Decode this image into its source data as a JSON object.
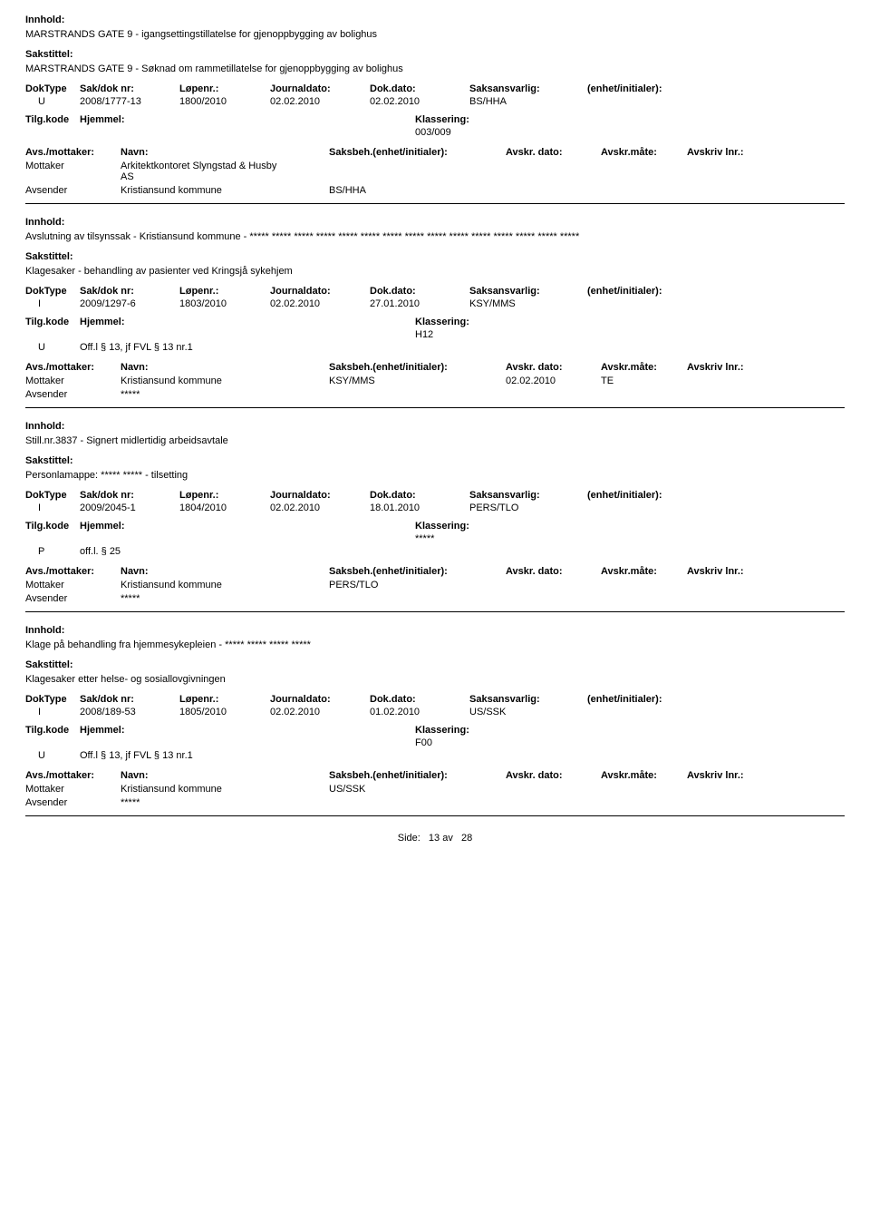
{
  "labels": {
    "innhold": "Innhold:",
    "sakstittel": "Sakstittel:",
    "doktype": "DokType",
    "sakdok": "Sak/dok nr:",
    "lopenr": "Løpenr.:",
    "journaldato": "Journaldato:",
    "dokdato": "Dok.dato:",
    "saksansvarlig": "Saksansvarlig:",
    "enhet": "(enhet/initialer):",
    "tilgkode": "Tilg.kode",
    "hjemmel": "Hjemmel:",
    "klassering": "Klassering:",
    "avsmottaker": "Avs./mottaker:",
    "navn": "Navn:",
    "saksbehenhet": "Saksbeh.(enhet/initialer):",
    "avskrdato": "Avskr. dato:",
    "avskrmate": "Avskr.måte:",
    "avskrivlnr": "Avskriv lnr.:",
    "mottaker": "Mottaker",
    "avsender": "Avsender",
    "side": "Side:",
    "av": "av"
  },
  "footer": {
    "page": "13",
    "total": "28"
  },
  "records": [
    {
      "innhold": "MARSTRANDS GATE 9 -  igangsettingstillatelse for gjenoppbygging av bolighus",
      "sakstittel": "MARSTRANDS GATE 9 - Søknad om rammetillatelse for gjenoppbygging av bolighus",
      "doktype": "U",
      "sakdok": "2008/1777-13",
      "lopenr": "1800/2010",
      "journaldato": "02.02.2010",
      "dokdato": "02.02.2010",
      "saksansvarlig": "BS/HHA",
      "tilgkode": "",
      "hjemmel": "",
      "klassering": "003/009",
      "parties": [
        {
          "role": "Mottaker",
          "navn_line1": "Arkitektkontoret Slyngstad & Husby",
          "navn_line2": "AS",
          "saksbeh": "",
          "avskrdato": "",
          "avskrmate": "",
          "avskrivlnr": ""
        },
        {
          "role": "Avsender",
          "navn_line1": "Kristiansund kommune",
          "navn_line2": "",
          "saksbeh": "BS/HHA",
          "avskrdato": "",
          "avskrmate": "",
          "avskrivlnr": ""
        }
      ]
    },
    {
      "innhold": "Avslutning av tilsynssak - Kristiansund kommune - ***** ***** ***** ***** ***** ***** ***** ***** ***** ***** ***** ***** ***** ***** *****",
      "sakstittel": "Klagesaker - behandling av pasienter ved Kringsjå sykehjem",
      "doktype": "I",
      "sakdok": "2009/1297-6",
      "lopenr": "1803/2010",
      "journaldato": "02.02.2010",
      "dokdato": "27.01.2010",
      "saksansvarlig": "KSY/MMS",
      "tilgkode": "U",
      "hjemmel": "Off.l § 13, jf FVL § 13 nr.1",
      "klassering": "H12",
      "parties": [
        {
          "role": "Mottaker",
          "navn_line1": "Kristiansund kommune",
          "navn_line2": "",
          "saksbeh": "KSY/MMS",
          "avskrdato": "02.02.2010",
          "avskrmate": "TE",
          "avskrivlnr": ""
        },
        {
          "role": "Avsender",
          "navn_line1": "*****",
          "navn_line2": "",
          "saksbeh": "",
          "avskrdato": "",
          "avskrmate": "",
          "avskrivlnr": ""
        }
      ]
    },
    {
      "innhold": "Still.nr.3837 - Signert midlertidig arbeidsavtale",
      "sakstittel": "Personlamappe: ***** ***** - tilsetting",
      "doktype": "I",
      "sakdok": "2009/2045-1",
      "lopenr": "1804/2010",
      "journaldato": "02.02.2010",
      "dokdato": "18.01.2010",
      "saksansvarlig": "PERS/TLO",
      "tilgkode": "P",
      "hjemmel": "off.l. § 25",
      "klassering": "*****",
      "parties": [
        {
          "role": "Mottaker",
          "navn_line1": "Kristiansund kommune",
          "navn_line2": "",
          "saksbeh": "PERS/TLO",
          "avskrdato": "",
          "avskrmate": "",
          "avskrivlnr": ""
        },
        {
          "role": "Avsender",
          "navn_line1": "*****",
          "navn_line2": "",
          "saksbeh": "",
          "avskrdato": "",
          "avskrmate": "",
          "avskrivlnr": ""
        }
      ]
    },
    {
      "innhold": "Klage på behandling fra hjemmesykepleien - ***** ***** ***** *****",
      "sakstittel": "Klagesaker etter helse- og sosiallovgivningen",
      "doktype": "I",
      "sakdok": "2008/189-53",
      "lopenr": "1805/2010",
      "journaldato": "02.02.2010",
      "dokdato": "01.02.2010",
      "saksansvarlig": "US/SSK",
      "tilgkode": "U",
      "hjemmel": "Off.l § 13, jf FVL § 13 nr.1",
      "klassering": "F00",
      "parties": [
        {
          "role": "Mottaker",
          "navn_line1": "Kristiansund kommune",
          "navn_line2": "",
          "saksbeh": "US/SSK",
          "avskrdato": "",
          "avskrmate": "",
          "avskrivlnr": ""
        },
        {
          "role": "Avsender",
          "navn_line1": "*****",
          "navn_line2": "",
          "saksbeh": "",
          "avskrdato": "",
          "avskrmate": "",
          "avskrivlnr": ""
        }
      ]
    }
  ]
}
